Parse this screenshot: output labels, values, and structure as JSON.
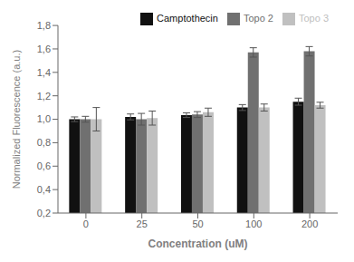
{
  "chart_data": {
    "type": "bar",
    "categories": [
      "0",
      "25",
      "50",
      "100",
      "200"
    ],
    "series": [
      {
        "name": "Camptothecin",
        "color": "#111111",
        "values": [
          1.0,
          1.02,
          1.035,
          1.1,
          1.15
        ],
        "errors": [
          0.02,
          0.025,
          0.02,
          0.025,
          0.03
        ]
      },
      {
        "name": "Topo 2",
        "color": "#707070",
        "values": [
          1.0,
          1.0,
          1.04,
          1.57,
          1.58
        ],
        "errors": [
          0.025,
          0.05,
          0.025,
          0.04,
          0.04
        ]
      },
      {
        "name": "Topo 3",
        "color": "#c0c0c0",
        "values": [
          1.0,
          1.01,
          1.06,
          1.1,
          1.12
        ],
        "errors": [
          0.1,
          0.06,
          0.035,
          0.03,
          0.025
        ]
      }
    ],
    "xlabel": "Concentration (uM)",
    "ylabel": "Normalized Fluorescence (a.u.)",
    "ylim": [
      0.2,
      1.8
    ],
    "yticks": [
      {
        "value": 0.2,
        "label": "0,2"
      },
      {
        "value": 0.4,
        "label": "0,4"
      },
      {
        "value": 0.6,
        "label": "0,6"
      },
      {
        "value": 0.8,
        "label": "0,8"
      },
      {
        "value": 1.0,
        "label": "1,0"
      },
      {
        "value": 1.2,
        "label": "1,2"
      },
      {
        "value": 1.4,
        "label": "1,4"
      },
      {
        "value": 1.6,
        "label": "1,6"
      },
      {
        "value": 1.8,
        "label": "1,8"
      }
    ],
    "legend": "upper right",
    "grid": false
  }
}
